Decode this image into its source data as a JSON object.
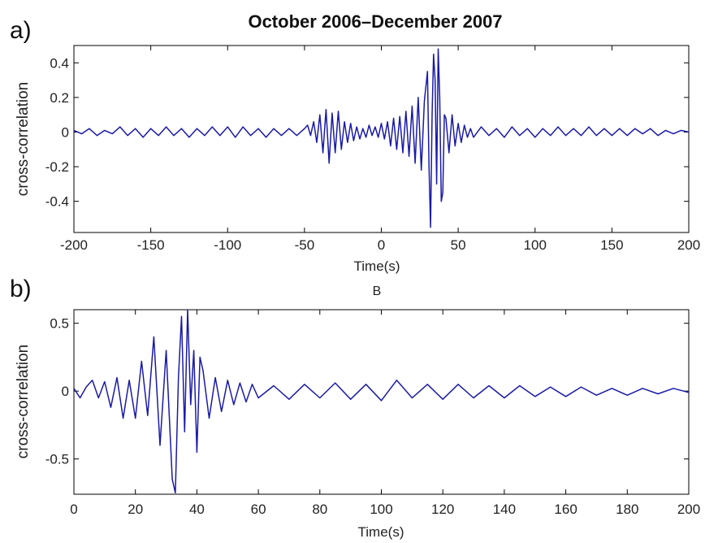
{
  "chart_data": [
    {
      "panel_label": "a)",
      "type": "line",
      "title": "October 2006–December 2007",
      "xlabel": "Time(s)",
      "ylabel": "cross-correlation",
      "xlim": [
        -200,
        200
      ],
      "ylim": [
        -0.58,
        0.5
      ],
      "xticks": [
        -200,
        -150,
        -100,
        -50,
        0,
        50,
        100,
        150,
        200
      ],
      "yticks": [
        -0.4,
        -0.2,
        0,
        0.2,
        0.4
      ],
      "ytick_labels": [
        "-0.4",
        "-0.2",
        "0",
        "0.2",
        "0.4"
      ],
      "grid": false,
      "color": "#1a1aa8",
      "x": [
        -200,
        -195,
        -190,
        -185,
        -180,
        -175,
        -170,
        -165,
        -160,
        -155,
        -150,
        -145,
        -140,
        -135,
        -130,
        -125,
        -120,
        -115,
        -110,
        -105,
        -100,
        -95,
        -90,
        -85,
        -80,
        -75,
        -70,
        -65,
        -60,
        -55,
        -50,
        -48,
        -46,
        -44,
        -42,
        -40,
        -38,
        -36,
        -34,
        -32,
        -30,
        -28,
        -26,
        -24,
        -22,
        -20,
        -18,
        -16,
        -14,
        -12,
        -10,
        -8,
        -6,
        -4,
        -2,
        0,
        2,
        4,
        6,
        8,
        10,
        12,
        14,
        16,
        18,
        20,
        22,
        24,
        26,
        28,
        30,
        31,
        32,
        33,
        34,
        35,
        36,
        37,
        38,
        39,
        40,
        41,
        42,
        44,
        46,
        48,
        50,
        52,
        54,
        56,
        58,
        60,
        65,
        70,
        75,
        80,
        85,
        90,
        95,
        100,
        105,
        110,
        115,
        120,
        125,
        130,
        135,
        140,
        145,
        150,
        155,
        160,
        165,
        170,
        175,
        180,
        185,
        190,
        195,
        200
      ],
      "y": [
        0.01,
        -0.01,
        0.02,
        -0.02,
        0.01,
        -0.01,
        0.03,
        -0.02,
        0.02,
        -0.03,
        0.02,
        -0.02,
        0.03,
        -0.02,
        0.02,
        -0.03,
        0.02,
        -0.02,
        0.03,
        -0.02,
        0.03,
        -0.03,
        0.03,
        -0.02,
        0.02,
        -0.03,
        0.02,
        -0.02,
        0.02,
        -0.02,
        0.02,
        0.04,
        -0.02,
        0.06,
        -0.06,
        0.1,
        -0.12,
        0.13,
        -0.18,
        0.11,
        -0.12,
        0.12,
        -0.1,
        0.06,
        -0.06,
        0.05,
        -0.05,
        0.03,
        -0.04,
        0.02,
        -0.03,
        0.04,
        -0.02,
        0.03,
        -0.03,
        0.05,
        -0.04,
        0.06,
        -0.08,
        0.08,
        -0.1,
        0.09,
        -0.12,
        0.12,
        -0.14,
        0.15,
        -0.18,
        0.2,
        -0.22,
        0.18,
        0.35,
        -0.2,
        -0.55,
        0.1,
        0.45,
        0.3,
        -0.3,
        0.48,
        0.2,
        -0.4,
        -0.35,
        0.1,
        0.08,
        -0.12,
        0.1,
        -0.08,
        0.05,
        -0.06,
        0.04,
        -0.03,
        0.02,
        -0.03,
        0.03,
        -0.02,
        0.02,
        -0.03,
        0.03,
        -0.02,
        0.02,
        -0.03,
        0.02,
        -0.02,
        0.03,
        -0.02,
        0.02,
        -0.02,
        0.03,
        -0.02,
        0.02,
        -0.02,
        0.02,
        -0.02,
        0.02,
        -0.01,
        0.02,
        -0.02,
        0.01,
        -0.01,
        0.01,
        0.0
      ]
    },
    {
      "panel_label": "b)",
      "type": "line",
      "title": "B",
      "xlabel": "Time(s)",
      "ylabel": "cross-correlation",
      "xlim": [
        0,
        200
      ],
      "ylim": [
        -0.76,
        0.6
      ],
      "xticks": [
        0,
        20,
        40,
        60,
        80,
        100,
        120,
        140,
        160,
        180,
        200
      ],
      "yticks": [
        -0.5,
        0,
        0.5
      ],
      "ytick_labels": [
        "-0.5",
        "0",
        "0.5"
      ],
      "grid": false,
      "color": "#1a1aa8",
      "x": [
        0,
        2,
        4,
        6,
        8,
        10,
        12,
        14,
        16,
        18,
        20,
        22,
        24,
        26,
        28,
        30,
        32,
        33,
        34,
        35,
        36,
        37,
        38,
        39,
        40,
        41,
        42,
        44,
        46,
        48,
        50,
        52,
        54,
        56,
        58,
        60,
        65,
        70,
        75,
        80,
        85,
        90,
        95,
        100,
        105,
        110,
        115,
        120,
        125,
        130,
        135,
        140,
        145,
        150,
        155,
        160,
        165,
        170,
        175,
        180,
        185,
        190,
        195,
        200
      ],
      "y": [
        0.02,
        -0.05,
        0.03,
        0.08,
        -0.05,
        0.07,
        -0.12,
        0.1,
        -0.2,
        0.08,
        -0.2,
        0.22,
        -0.18,
        0.4,
        -0.4,
        0.3,
        -0.65,
        -0.75,
        0.1,
        0.55,
        -0.3,
        0.6,
        -0.1,
        0.3,
        -0.45,
        0.25,
        0.15,
        -0.2,
        0.1,
        -0.15,
        0.08,
        -0.1,
        0.06,
        -0.08,
        0.05,
        -0.05,
        0.04,
        -0.06,
        0.05,
        -0.05,
        0.06,
        -0.06,
        0.05,
        -0.07,
        0.08,
        -0.05,
        0.05,
        -0.06,
        0.05,
        -0.05,
        0.04,
        -0.05,
        0.04,
        -0.04,
        0.03,
        -0.04,
        0.03,
        -0.03,
        0.02,
        -0.03,
        0.02,
        -0.02,
        0.02,
        -0.01
      ]
    }
  ]
}
